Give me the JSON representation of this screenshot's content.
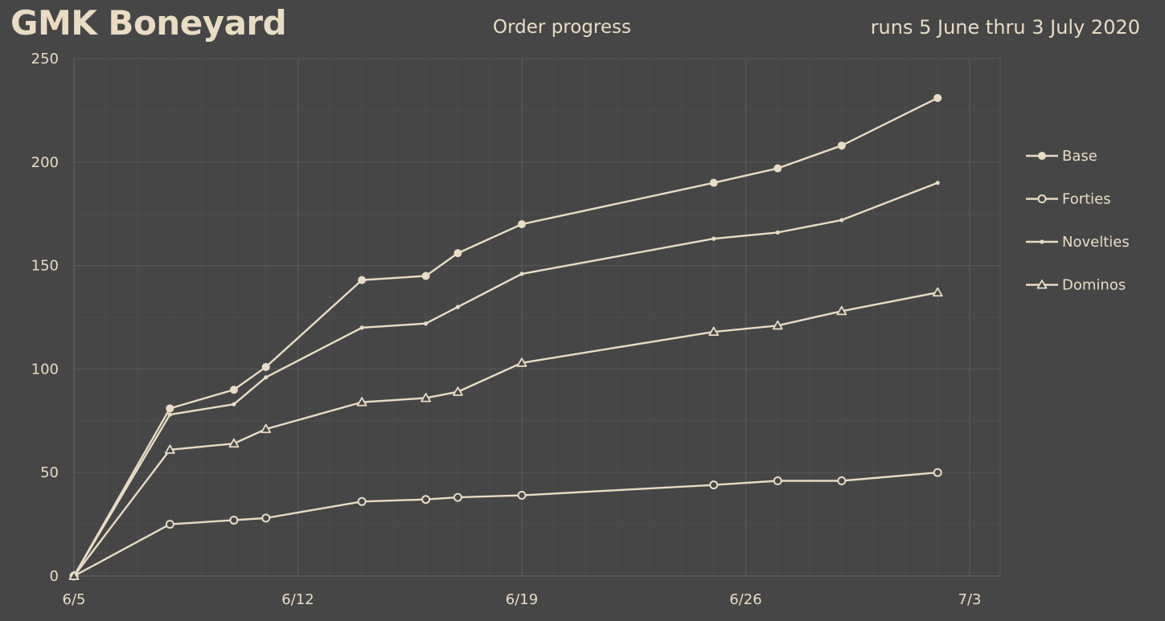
{
  "header": {
    "title": "GMK Boneyard",
    "subtitle": "Order progress",
    "date_range": "runs 5 June thru 3 July 2020"
  },
  "colors": {
    "background": "#464646",
    "line": "#e9dcc4",
    "grid_major": "#555555",
    "grid_minor": "#4e4e4e"
  },
  "chart_data": {
    "type": "line",
    "title": "Order progress",
    "xlabel": "",
    "ylabel": "",
    "x_type": "date",
    "xlim": [
      "2020-06-05",
      "2020-07-03"
    ],
    "ylim": [
      0,
      250
    ],
    "x_ticks": [
      {
        "date": "2020-06-05",
        "label": "6/5"
      },
      {
        "date": "2020-06-12",
        "label": "6/12"
      },
      {
        "date": "2020-06-19",
        "label": "6/19"
      },
      {
        "date": "2020-06-26",
        "label": "6/26"
      },
      {
        "date": "2020-07-03",
        "label": "7/3"
      }
    ],
    "y_ticks": [
      0,
      50,
      100,
      150,
      200,
      250
    ],
    "grid": true,
    "legend_position": "right",
    "x": [
      "2020-06-05",
      "2020-06-08",
      "2020-06-10",
      "2020-06-11",
      "2020-06-14",
      "2020-06-16",
      "2020-06-17",
      "2020-06-19",
      "2020-06-25",
      "2020-06-27",
      "2020-06-29",
      "2020-07-02"
    ],
    "series": [
      {
        "name": "Base",
        "marker": "filled-circle",
        "values": [
          0,
          81,
          90,
          101,
          143,
          145,
          156,
          170,
          190,
          197,
          208,
          231
        ]
      },
      {
        "name": "Forties",
        "marker": "open-circle",
        "values": [
          0,
          25,
          27,
          28,
          36,
          37,
          38,
          39,
          44,
          46,
          46,
          50
        ]
      },
      {
        "name": "Novelties",
        "marker": "dot",
        "values": [
          0,
          78,
          83,
          96,
          120,
          122,
          130,
          146,
          163,
          166,
          172,
          190
        ]
      },
      {
        "name": "Dominos",
        "marker": "open-triangle",
        "values": [
          0,
          61,
          64,
          71,
          84,
          86,
          89,
          103,
          118,
          121,
          128,
          137
        ]
      }
    ]
  }
}
